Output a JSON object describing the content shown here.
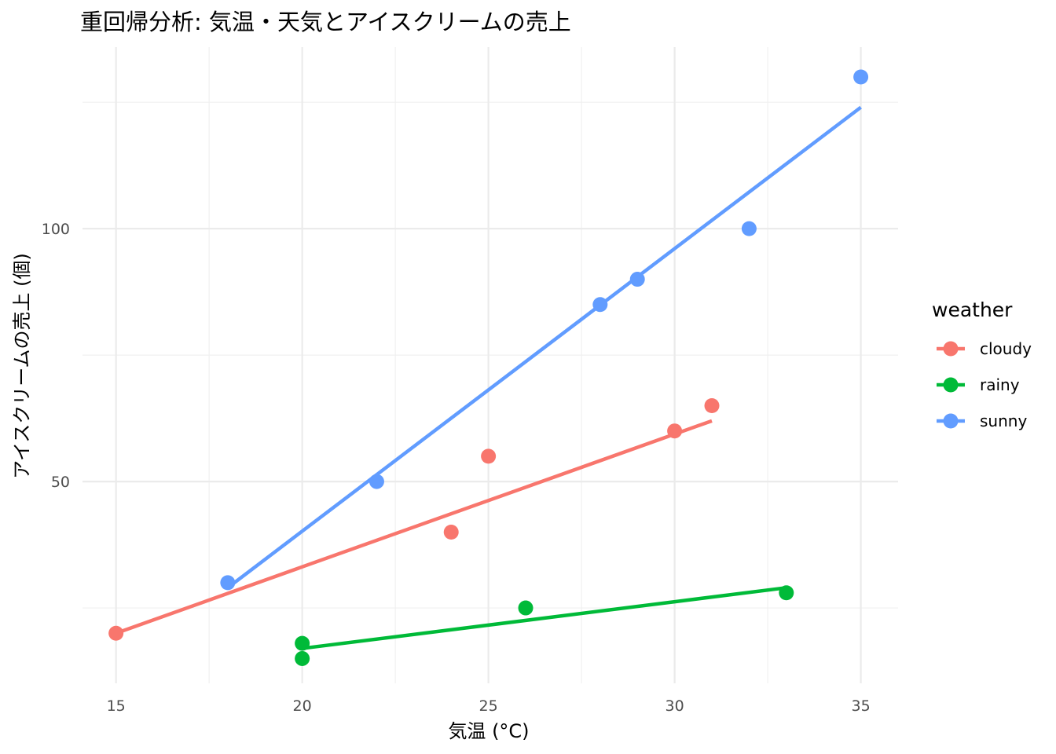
{
  "chart_data": {
    "type": "scatter",
    "title": "重回帰分析: 気温・天気とアイスクリームの売上",
    "xlabel": "気温 (°C)",
    "ylabel": "アイスクリームの売上 (個)",
    "xlim": [
      14.1,
      36.0
    ],
    "ylim": [
      10.1,
      135.9
    ],
    "xticks": [
      15,
      20,
      25,
      30,
      35
    ],
    "yticks": [
      50,
      100
    ],
    "grid": true,
    "legend": {
      "title": "weather",
      "placement": "right"
    },
    "series": [
      {
        "name": "cloudy",
        "color": "#F8766D",
        "points": [
          [
            15,
            20
          ],
          [
            24,
            40
          ],
          [
            25,
            55
          ],
          [
            30,
            60
          ],
          [
            31,
            65
          ]
        ],
        "fit": [
          [
            15,
            20
          ],
          [
            31,
            62
          ]
        ]
      },
      {
        "name": "rainy",
        "color": "#00BA38",
        "points": [
          [
            20,
            18
          ],
          [
            20,
            15
          ],
          [
            26,
            25
          ],
          [
            33,
            28
          ]
        ],
        "fit": [
          [
            20,
            17
          ],
          [
            33,
            29
          ]
        ]
      },
      {
        "name": "sunny",
        "color": "#619CFF",
        "points": [
          [
            18,
            30
          ],
          [
            22,
            50
          ],
          [
            28,
            85
          ],
          [
            29,
            90
          ],
          [
            32,
            100
          ],
          [
            35,
            130
          ]
        ],
        "fit": [
          [
            18,
            29
          ],
          [
            35,
            124
          ]
        ]
      }
    ]
  }
}
